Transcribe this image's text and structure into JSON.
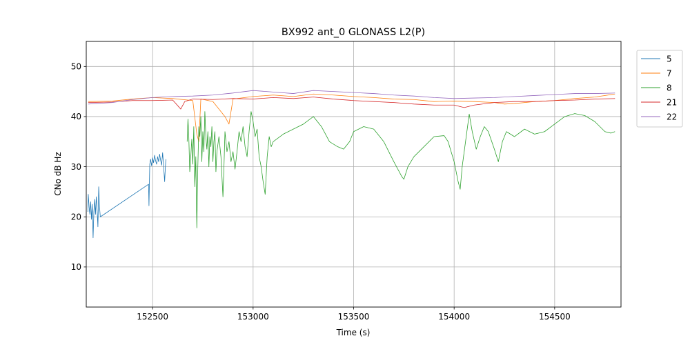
{
  "chart_data": {
    "type": "line",
    "title": "BX992 ant_0 GLONASS L2(P)",
    "xlabel": "Time (s)",
    "ylabel": "CNo dB Hz",
    "xlim": [
      152170,
      154830
    ],
    "ylim": [
      2,
      55
    ],
    "xticks": [
      152500,
      153000,
      153500,
      154000,
      154500
    ],
    "xtick_labels": [
      "152500",
      "153000",
      "153500",
      "154000",
      "154500"
    ],
    "yticks": [
      10,
      20,
      30,
      40,
      50
    ],
    "ytick_labels": [
      "10",
      "20",
      "30",
      "40",
      "50"
    ],
    "grid": true,
    "legend_position": "outside-top-right",
    "series": [
      {
        "name": "5",
        "color": "#1f77b4",
        "points": [
          [
            152178,
            21
          ],
          [
            152180,
            24.5
          ],
          [
            152184,
            22
          ],
          [
            152188,
            20.5
          ],
          [
            152192,
            23
          ],
          [
            152196,
            19.5
          ],
          [
            152200,
            22.5
          ],
          [
            152204,
            15.8
          ],
          [
            152208,
            21
          ],
          [
            152212,
            23.5
          ],
          [
            152216,
            20.5
          ],
          [
            152220,
            24
          ],
          [
            152224,
            21.5
          ],
          [
            152228,
            18
          ],
          [
            152232,
            26
          ],
          [
            152236,
            22
          ],
          [
            152240,
            20
          ],
          [
            152480,
            26.5
          ],
          [
            152482,
            22.2
          ],
          [
            152486,
            30.5
          ],
          [
            152490,
            31.5
          ],
          [
            152495,
            30.2
          ],
          [
            152500,
            31.8
          ],
          [
            152505,
            30.8
          ],
          [
            152510,
            32.3
          ],
          [
            152515,
            31.2
          ],
          [
            152520,
            30.5
          ],
          [
            152525,
            32
          ],
          [
            152530,
            31
          ],
          [
            152535,
            32.5
          ],
          [
            152540,
            31.3
          ],
          [
            152545,
            30.3
          ],
          [
            152550,
            32.8
          ],
          [
            152555,
            30
          ],
          [
            152560,
            27
          ],
          [
            152563,
            29.5
          ],
          [
            152566,
            31.5
          ]
        ]
      },
      {
        "name": "7",
        "color": "#ff7f0e",
        "points": [
          [
            152180,
            43
          ],
          [
            152300,
            43.1
          ],
          [
            152400,
            43.5
          ],
          [
            152500,
            43.8
          ],
          [
            152600,
            43.6
          ],
          [
            152700,
            43.2
          ],
          [
            152720,
            36.5
          ],
          [
            152730,
            35
          ],
          [
            152740,
            43.5
          ],
          [
            152800,
            43
          ],
          [
            152860,
            40
          ],
          [
            152880,
            38.5
          ],
          [
            152900,
            43.5
          ],
          [
            153000,
            44
          ],
          [
            153100,
            44.3
          ],
          [
            153200,
            44
          ],
          [
            153300,
            44.5
          ],
          [
            153400,
            44.3
          ],
          [
            153500,
            44
          ],
          [
            153600,
            43.8
          ],
          [
            153700,
            43.5
          ],
          [
            153800,
            43.4
          ],
          [
            153900,
            43
          ],
          [
            154000,
            43.1
          ],
          [
            154100,
            43
          ],
          [
            154200,
            42.8
          ],
          [
            154250,
            42.5
          ],
          [
            154300,
            42.6
          ],
          [
            154400,
            43
          ],
          [
            154500,
            43.2
          ],
          [
            154600,
            43.6
          ],
          [
            154700,
            43.9
          ],
          [
            154800,
            44.5
          ]
        ]
      },
      {
        "name": "8",
        "color": "#2ca02c",
        "points": [
          [
            152672,
            35
          ],
          [
            152676,
            39.5
          ],
          [
            152680,
            36
          ],
          [
            152685,
            29
          ],
          [
            152690,
            32
          ],
          [
            152695,
            35.5
          ],
          [
            152700,
            30.5
          ],
          [
            152705,
            38
          ],
          [
            152710,
            26
          ],
          [
            152715,
            32
          ],
          [
            152720,
            17.8
          ],
          [
            152725,
            30
          ],
          [
            152730,
            38
          ],
          [
            152735,
            36
          ],
          [
            152740,
            40
          ],
          [
            152745,
            31
          ],
          [
            152750,
            37
          ],
          [
            152755,
            33
          ],
          [
            152760,
            41
          ],
          [
            152765,
            36
          ],
          [
            152770,
            33.5
          ],
          [
            152775,
            37
          ],
          [
            152780,
            30
          ],
          [
            152785,
            36
          ],
          [
            152790,
            34
          ],
          [
            152795,
            38
          ],
          [
            152800,
            31
          ],
          [
            152805,
            35
          ],
          [
            152810,
            37
          ],
          [
            152815,
            29
          ],
          [
            152820,
            33
          ],
          [
            152830,
            36
          ],
          [
            152840,
            32
          ],
          [
            152850,
            24
          ],
          [
            152855,
            30
          ],
          [
            152860,
            37
          ],
          [
            152870,
            33
          ],
          [
            152880,
            35
          ],
          [
            152890,
            31
          ],
          [
            152900,
            33
          ],
          [
            152910,
            29.5
          ],
          [
            152920,
            33
          ],
          [
            152930,
            37
          ],
          [
            152940,
            35
          ],
          [
            152950,
            38
          ],
          [
            152960,
            34
          ],
          [
            152970,
            32
          ],
          [
            152980,
            37
          ],
          [
            152990,
            41
          ],
          [
            153000,
            39
          ],
          [
            153010,
            36
          ],
          [
            153020,
            37.5
          ],
          [
            153030,
            32
          ],
          [
            153040,
            30
          ],
          [
            153050,
            27
          ],
          [
            153060,
            24.5
          ],
          [
            153070,
            32
          ],
          [
            153080,
            36
          ],
          [
            153090,
            34
          ],
          [
            153100,
            35
          ],
          [
            153150,
            36.5
          ],
          [
            153200,
            37.5
          ],
          [
            153250,
            38.5
          ],
          [
            153300,
            40
          ],
          [
            153340,
            38
          ],
          [
            153380,
            35
          ],
          [
            153420,
            34
          ],
          [
            153450,
            33.5
          ],
          [
            153480,
            35
          ],
          [
            153500,
            37
          ],
          [
            153550,
            38
          ],
          [
            153600,
            37.5
          ],
          [
            153650,
            35
          ],
          [
            153700,
            31
          ],
          [
            153740,
            28
          ],
          [
            153750,
            27.5
          ],
          [
            153770,
            30
          ],
          [
            153800,
            32
          ],
          [
            153850,
            34
          ],
          [
            153900,
            36
          ],
          [
            153950,
            36.2
          ],
          [
            153970,
            35
          ],
          [
            154000,
            31
          ],
          [
            154020,
            27
          ],
          [
            154030,
            25.5
          ],
          [
            154040,
            30
          ],
          [
            154060,
            36
          ],
          [
            154075,
            40.5
          ],
          [
            154090,
            37
          ],
          [
            154110,
            33.5
          ],
          [
            154130,
            36
          ],
          [
            154150,
            38
          ],
          [
            154170,
            37
          ],
          [
            154200,
            33.5
          ],
          [
            154220,
            31
          ],
          [
            154240,
            35
          ],
          [
            154260,
            37
          ],
          [
            154300,
            36
          ],
          [
            154350,
            37.5
          ],
          [
            154400,
            36.5
          ],
          [
            154450,
            37
          ],
          [
            154500,
            38.5
          ],
          [
            154550,
            40
          ],
          [
            154600,
            40.6
          ],
          [
            154650,
            40.2
          ],
          [
            154700,
            39
          ],
          [
            154750,
            37
          ],
          [
            154780,
            36.7
          ],
          [
            154800,
            37
          ]
        ]
      },
      {
        "name": "21",
        "color": "#d62728",
        "points": [
          [
            152180,
            42.8
          ],
          [
            152300,
            42.9
          ],
          [
            152400,
            43.2
          ],
          [
            152500,
            43.2
          ],
          [
            152600,
            43.3
          ],
          [
            152640,
            41.5
          ],
          [
            152660,
            43
          ],
          [
            152700,
            43.5
          ],
          [
            152800,
            43.4
          ],
          [
            152900,
            43.6
          ],
          [
            153000,
            43.5
          ],
          [
            153100,
            43.8
          ],
          [
            153200,
            43.6
          ],
          [
            153300,
            43.9
          ],
          [
            153400,
            43.5
          ],
          [
            153500,
            43.2
          ],
          [
            153600,
            43
          ],
          [
            153700,
            42.8
          ],
          [
            153800,
            42.5
          ],
          [
            153900,
            42.3
          ],
          [
            154000,
            42.3
          ],
          [
            154050,
            41.8
          ],
          [
            154100,
            42.3
          ],
          [
            154200,
            42.8
          ],
          [
            154300,
            43
          ],
          [
            154400,
            43
          ],
          [
            154500,
            43.2
          ],
          [
            154600,
            43.3
          ],
          [
            154700,
            43.5
          ],
          [
            154800,
            43.6
          ]
        ]
      },
      {
        "name": "22",
        "color": "#9467bd",
        "points": [
          [
            152180,
            42.5
          ],
          [
            152300,
            42.8
          ],
          [
            152400,
            43.4
          ],
          [
            152500,
            43.8
          ],
          [
            152600,
            44
          ],
          [
            152700,
            44.1
          ],
          [
            152800,
            44.3
          ],
          [
            152900,
            44.7
          ],
          [
            153000,
            45.2
          ],
          [
            153100,
            44.9
          ],
          [
            153200,
            44.6
          ],
          [
            153300,
            45.2
          ],
          [
            153400,
            45
          ],
          [
            153500,
            44.8
          ],
          [
            153600,
            44.6
          ],
          [
            153700,
            44.3
          ],
          [
            153800,
            44.1
          ],
          [
            153900,
            43.8
          ],
          [
            154000,
            43.6
          ],
          [
            154100,
            43.7
          ],
          [
            154200,
            43.8
          ],
          [
            154300,
            44
          ],
          [
            154400,
            44.2
          ],
          [
            154500,
            44.4
          ],
          [
            154600,
            44.6
          ],
          [
            154700,
            44.6
          ],
          [
            154800,
            44.7
          ]
        ]
      }
    ]
  }
}
